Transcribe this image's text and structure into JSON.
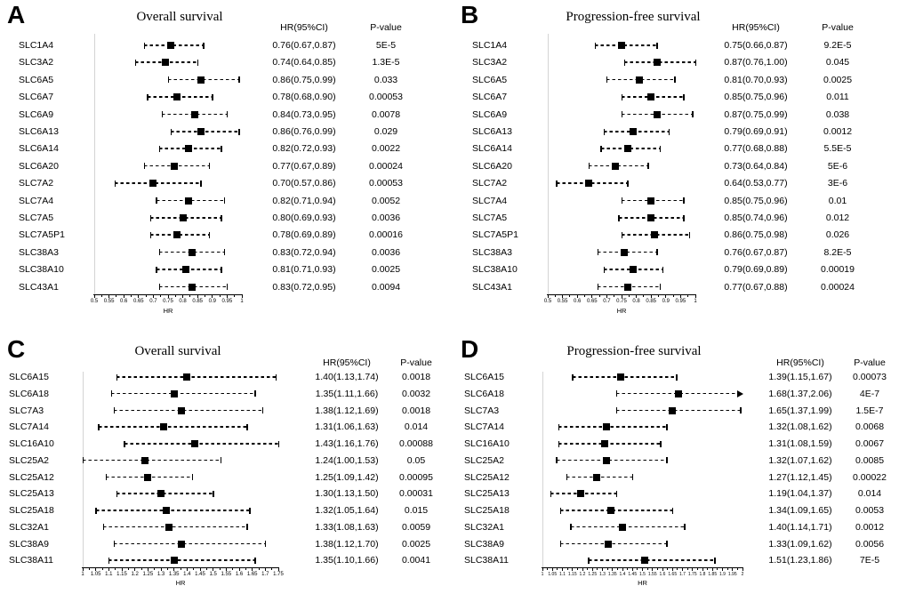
{
  "figure": {
    "background_color": "#ffffff",
    "text_color": "#000000",
    "marker_color": "#000000",
    "reference_line_color": "#d4d4d4"
  },
  "chart_data": [
    {
      "type": "scatter",
      "variant": "forest-plot",
      "panel_letter": "A",
      "title": "Overall survival",
      "columns": {
        "hr": "HR(95%CI)",
        "p": "P-value"
      },
      "xlabel": "HR",
      "xlim": [
        0.5,
        1.0
      ],
      "xtick_labels": [
        "0.5",
        "0.55",
        "0.6",
        "0.65",
        "0.7",
        "0.75",
        "0.8",
        "0.85",
        "0.9",
        "0.95",
        "1"
      ],
      "rows": [
        {
          "gene": "SLC1A4",
          "hr": 0.76,
          "ci_low": 0.67,
          "ci_high": 0.87,
          "hr_ci": "0.76(0.67,0.87)",
          "p": "5E-5"
        },
        {
          "gene": "SLC3A2",
          "hr": 0.74,
          "ci_low": 0.64,
          "ci_high": 0.85,
          "hr_ci": "0.74(0.64,0.85)",
          "p": "1.3E-5"
        },
        {
          "gene": "SLC6A5",
          "hr": 0.86,
          "ci_low": 0.75,
          "ci_high": 0.99,
          "hr_ci": "0.86(0.75,0.99)",
          "p": "0.033"
        },
        {
          "gene": "SLC6A7",
          "hr": 0.78,
          "ci_low": 0.68,
          "ci_high": 0.9,
          "hr_ci": "0.78(0.68,0.90)",
          "p": "0.00053"
        },
        {
          "gene": "SLC6A9",
          "hr": 0.84,
          "ci_low": 0.73,
          "ci_high": 0.95,
          "hr_ci": "0.84(0.73,0.95)",
          "p": "0.0078"
        },
        {
          "gene": "SLC6A13",
          "hr": 0.86,
          "ci_low": 0.76,
          "ci_high": 0.99,
          "hr_ci": "0.86(0.76,0.99)",
          "p": "0.029"
        },
        {
          "gene": "SLC6A14",
          "hr": 0.82,
          "ci_low": 0.72,
          "ci_high": 0.93,
          "hr_ci": "0.82(0.72,0.93)",
          "p": "0.0022"
        },
        {
          "gene": "SLC6A20",
          "hr": 0.77,
          "ci_low": 0.67,
          "ci_high": 0.89,
          "hr_ci": "0.77(0.67,0.89)",
          "p": "0.00024"
        },
        {
          "gene": "SLC7A2",
          "hr": 0.7,
          "ci_low": 0.57,
          "ci_high": 0.86,
          "hr_ci": "0.70(0.57,0.86)",
          "p": "0.00053"
        },
        {
          "gene": "SLC7A4",
          "hr": 0.82,
          "ci_low": 0.71,
          "ci_high": 0.94,
          "hr_ci": "0.82(0.71,0.94)",
          "p": "0.0052"
        },
        {
          "gene": "SLC7A5",
          "hr": 0.8,
          "ci_low": 0.69,
          "ci_high": 0.93,
          "hr_ci": "0.80(0.69,0.93)",
          "p": "0.0036"
        },
        {
          "gene": "SLC7A5P1",
          "hr": 0.78,
          "ci_low": 0.69,
          "ci_high": 0.89,
          "hr_ci": "0.78(0.69,0.89)",
          "p": "0.00016"
        },
        {
          "gene": "SLC38A3",
          "hr": 0.83,
          "ci_low": 0.72,
          "ci_high": 0.94,
          "hr_ci": "0.83(0.72,0.94)",
          "p": "0.0036"
        },
        {
          "gene": "SLC38A10",
          "hr": 0.81,
          "ci_low": 0.71,
          "ci_high": 0.93,
          "hr_ci": "0.81(0.71,0.93)",
          "p": "0.0025"
        },
        {
          "gene": "SLC43A1",
          "hr": 0.83,
          "ci_low": 0.72,
          "ci_high": 0.95,
          "hr_ci": "0.83(0.72,0.95)",
          "p": "0.0094"
        }
      ]
    },
    {
      "type": "scatter",
      "variant": "forest-plot",
      "panel_letter": "B",
      "title": "Progression-free survival",
      "columns": {
        "hr": "HR(95%CI)",
        "p": "P-value"
      },
      "xlabel": "HR",
      "xlim": [
        0.5,
        1.0
      ],
      "xtick_labels": [
        "0.5",
        "0.55",
        "0.6",
        "0.65",
        "0.7",
        "0.75",
        "0.8",
        "0.85",
        "0.9",
        "0.95",
        "1"
      ],
      "rows": [
        {
          "gene": "SLC1A4",
          "hr": 0.75,
          "ci_low": 0.66,
          "ci_high": 0.87,
          "hr_ci": "0.75(0.66,0.87)",
          "p": "9.2E-5"
        },
        {
          "gene": "SLC3A2",
          "hr": 0.87,
          "ci_low": 0.76,
          "ci_high": 1.0,
          "hr_ci": "0.87(0.76,1.00)",
          "p": "0.045"
        },
        {
          "gene": "SLC6A5",
          "hr": 0.81,
          "ci_low": 0.7,
          "ci_high": 0.93,
          "hr_ci": "0.81(0.70,0.93)",
          "p": "0.0025"
        },
        {
          "gene": "SLC6A7",
          "hr": 0.85,
          "ci_low": 0.75,
          "ci_high": 0.96,
          "hr_ci": "0.85(0.75,0.96)",
          "p": "0.011"
        },
        {
          "gene": "SLC6A9",
          "hr": 0.87,
          "ci_low": 0.75,
          "ci_high": 0.99,
          "hr_ci": "0.87(0.75,0.99)",
          "p": "0.038"
        },
        {
          "gene": "SLC6A13",
          "hr": 0.79,
          "ci_low": 0.69,
          "ci_high": 0.91,
          "hr_ci": "0.79(0.69,0.91)",
          "p": "0.0012"
        },
        {
          "gene": "SLC6A14",
          "hr": 0.77,
          "ci_low": 0.68,
          "ci_high": 0.88,
          "hr_ci": "0.77(0.68,0.88)",
          "p": "5.5E-5"
        },
        {
          "gene": "SLC6A20",
          "hr": 0.73,
          "ci_low": 0.64,
          "ci_high": 0.84,
          "hr_ci": "0.73(0.64,0.84)",
          "p": "5E-6"
        },
        {
          "gene": "SLC7A2",
          "hr": 0.64,
          "ci_low": 0.53,
          "ci_high": 0.77,
          "hr_ci": "0.64(0.53,0.77)",
          "p": "3E-6"
        },
        {
          "gene": "SLC7A4",
          "hr": 0.85,
          "ci_low": 0.75,
          "ci_high": 0.96,
          "hr_ci": "0.85(0.75,0.96)",
          "p": "0.01"
        },
        {
          "gene": "SLC7A5",
          "hr": 0.85,
          "ci_low": 0.74,
          "ci_high": 0.96,
          "hr_ci": "0.85(0.74,0.96)",
          "p": "0.012"
        },
        {
          "gene": "SLC7A5P1",
          "hr": 0.86,
          "ci_low": 0.75,
          "ci_high": 0.98,
          "hr_ci": "0.86(0.75,0.98)",
          "p": "0.026"
        },
        {
          "gene": "SLC38A3",
          "hr": 0.76,
          "ci_low": 0.67,
          "ci_high": 0.87,
          "hr_ci": "0.76(0.67,0.87)",
          "p": "8.2E-5"
        },
        {
          "gene": "SLC38A10",
          "hr": 0.79,
          "ci_low": 0.69,
          "ci_high": 0.89,
          "hr_ci": "0.79(0.69,0.89)",
          "p": "0.00019"
        },
        {
          "gene": "SLC43A1",
          "hr": 0.77,
          "ci_low": 0.67,
          "ci_high": 0.88,
          "hr_ci": "0.77(0.67,0.88)",
          "p": "0.00024"
        }
      ]
    },
    {
      "type": "scatter",
      "variant": "forest-plot",
      "panel_letter": "C",
      "title": "Overall survival",
      "columns": {
        "hr": "HR(95%CI)",
        "p": "P-value"
      },
      "xlabel": "HR",
      "xlim": [
        1.0,
        1.75
      ],
      "xtick_labels": [
        "1",
        "1.05",
        "1.1",
        "1.15",
        "1.2",
        "1.25",
        "1.3",
        "1.35",
        "1.4",
        "1.45",
        "1.5",
        "1.55",
        "1.6",
        "1.65",
        "1.7",
        "1.75"
      ],
      "rows": [
        {
          "gene": "SLC6A15",
          "hr": 1.4,
          "ci_low": 1.13,
          "ci_high": 1.74,
          "hr_ci": "1.40(1.13,1.74)",
          "p": "0.0018"
        },
        {
          "gene": "SLC6A18",
          "hr": 1.35,
          "ci_low": 1.11,
          "ci_high": 1.66,
          "hr_ci": "1.35(1.11,1.66)",
          "p": "0.0032"
        },
        {
          "gene": "SLC7A3",
          "hr": 1.38,
          "ci_low": 1.12,
          "ci_high": 1.69,
          "hr_ci": "1.38(1.12,1.69)",
          "p": "0.0018"
        },
        {
          "gene": "SLC7A14",
          "hr": 1.31,
          "ci_low": 1.06,
          "ci_high": 1.63,
          "hr_ci": "1.31(1.06,1.63)",
          "p": "0.014"
        },
        {
          "gene": "SLC16A10",
          "hr": 1.43,
          "ci_low": 1.16,
          "ci_high": 1.76,
          "hr_ci": "1.43(1.16,1.76)",
          "p": "0.00088"
        },
        {
          "gene": "SLC25A2",
          "hr": 1.24,
          "ci_low": 1.0,
          "ci_high": 1.53,
          "hr_ci": "1.24(1.00,1.53)",
          "p": "0.05"
        },
        {
          "gene": "SLC25A12",
          "hr": 1.25,
          "ci_low": 1.09,
          "ci_high": 1.42,
          "hr_ci": "1.25(1.09,1.42)",
          "p": "0.00095"
        },
        {
          "gene": "SLC25A13",
          "hr": 1.3,
          "ci_low": 1.13,
          "ci_high": 1.5,
          "hr_ci": "1.30(1.13,1.50)",
          "p": "0.00031"
        },
        {
          "gene": "SLC25A18",
          "hr": 1.32,
          "ci_low": 1.05,
          "ci_high": 1.64,
          "hr_ci": "1.32(1.05,1.64)",
          "p": "0.015"
        },
        {
          "gene": "SLC32A1",
          "hr": 1.33,
          "ci_low": 1.08,
          "ci_high": 1.63,
          "hr_ci": "1.33(1.08,1.63)",
          "p": "0.0059"
        },
        {
          "gene": "SLC38A9",
          "hr": 1.38,
          "ci_low": 1.12,
          "ci_high": 1.7,
          "hr_ci": "1.38(1.12,1.70)",
          "p": "0.0025"
        },
        {
          "gene": "SLC38A11",
          "hr": 1.35,
          "ci_low": 1.1,
          "ci_high": 1.66,
          "hr_ci": "1.35(1.10,1.66)",
          "p": "0.0041"
        }
      ]
    },
    {
      "type": "scatter",
      "variant": "forest-plot",
      "panel_letter": "D",
      "title": "Progression-free survival",
      "columns": {
        "hr": "HR(95%CI)",
        "p": "P-value"
      },
      "xlabel": "HR",
      "xlim": [
        1.0,
        2.0
      ],
      "xtick_labels": [
        "1",
        "1.05",
        "1.1",
        "1.15",
        "1.2",
        "1.25",
        "1.3",
        "1.35",
        "1.4",
        "1.45",
        "1.5",
        "1.55",
        "1.6",
        "1.65",
        "1.7",
        "1.75",
        "1.8",
        "1.85",
        "1.9",
        "1.95",
        "2"
      ],
      "rows": [
        {
          "gene": "SLC6A15",
          "hr": 1.39,
          "ci_low": 1.15,
          "ci_high": 1.67,
          "hr_ci": "1.39(1.15,1.67)",
          "p": "0.00073"
        },
        {
          "gene": "SLC6A18",
          "hr": 1.68,
          "ci_low": 1.37,
          "ci_high": 2.06,
          "hr_ci": "1.68(1.37,2.06)",
          "p": "4E-7"
        },
        {
          "gene": "SLC7A3",
          "hr": 1.65,
          "ci_low": 1.37,
          "ci_high": 1.99,
          "hr_ci": "1.65(1.37,1.99)",
          "p": "1.5E-7"
        },
        {
          "gene": "SLC7A14",
          "hr": 1.32,
          "ci_low": 1.08,
          "ci_high": 1.62,
          "hr_ci": "1.32(1.08,1.62)",
          "p": "0.0068"
        },
        {
          "gene": "SLC16A10",
          "hr": 1.31,
          "ci_low": 1.08,
          "ci_high": 1.59,
          "hr_ci": "1.31(1.08,1.59)",
          "p": "0.0067"
        },
        {
          "gene": "SLC25A2",
          "hr": 1.32,
          "ci_low": 1.07,
          "ci_high": 1.62,
          "hr_ci": "1.32(1.07,1.62)",
          "p": "0.0085"
        },
        {
          "gene": "SLC25A12",
          "hr": 1.27,
          "ci_low": 1.12,
          "ci_high": 1.45,
          "hr_ci": "1.27(1.12,1.45)",
          "p": "0.00022"
        },
        {
          "gene": "SLC25A13",
          "hr": 1.19,
          "ci_low": 1.04,
          "ci_high": 1.37,
          "hr_ci": "1.19(1.04,1.37)",
          "p": "0.014"
        },
        {
          "gene": "SLC25A18",
          "hr": 1.34,
          "ci_low": 1.09,
          "ci_high": 1.65,
          "hr_ci": "1.34(1.09,1.65)",
          "p": "0.0053"
        },
        {
          "gene": "SLC32A1",
          "hr": 1.4,
          "ci_low": 1.14,
          "ci_high": 1.71,
          "hr_ci": "1.40(1.14,1.71)",
          "p": "0.0012"
        },
        {
          "gene": "SLC38A9",
          "hr": 1.33,
          "ci_low": 1.09,
          "ci_high": 1.62,
          "hr_ci": "1.33(1.09,1.62)",
          "p": "0.0056"
        },
        {
          "gene": "SLC38A11",
          "hr": 1.51,
          "ci_low": 1.23,
          "ci_high": 1.86,
          "hr_ci": "1.51(1.23,1.86)",
          "p": "7E-5"
        }
      ]
    }
  ]
}
